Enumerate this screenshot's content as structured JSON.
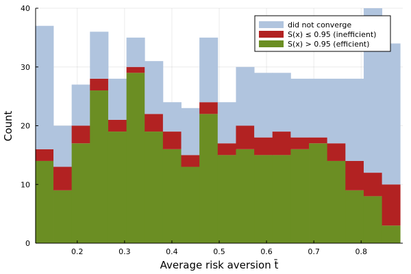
{
  "chart_data": {
    "type": "bar",
    "stacked": true,
    "title": "",
    "xlabel": "Average risk aversion t̄",
    "ylabel": "Count",
    "xlim": [
      0.112,
      0.888
    ],
    "ylim": [
      0,
      40
    ],
    "bin_edges": [
      0.1111,
      0.1497,
      0.1882,
      0.2268,
      0.2654,
      0.304,
      0.3425,
      0.3811,
      0.4197,
      0.4582,
      0.4968,
      0.5354,
      0.574,
      0.6125,
      0.6511,
      0.6897,
      0.7282,
      0.7668,
      0.8054,
      0.844,
      0.8825
    ],
    "x_ticks": [
      "0.2",
      "0.3",
      "0.4",
      "0.5",
      "0.6",
      "0.7",
      "0.8"
    ],
    "x_tick_values": [
      0.2,
      0.3,
      0.4,
      0.5,
      0.6,
      0.7,
      0.8
    ],
    "y_ticks": [
      "0",
      "10",
      "20",
      "30",
      "40"
    ],
    "y_tick_values": [
      0,
      10,
      20,
      30,
      40
    ],
    "grid": true,
    "legend_position": "top-right",
    "series": [
      {
        "name": "did not converge",
        "color": "#b0c4de",
        "values": [
          21,
          7,
          7,
          8,
          7,
          5,
          9,
          5,
          8,
          11,
          7,
          10,
          11,
          10,
          10,
          10,
          11,
          14,
          28,
          24
        ]
      },
      {
        "name": "S(x) ≤ 0.95 (inefficient)",
        "color": "#b22222",
        "values": [
          2,
          4,
          3,
          2,
          2,
          1,
          3,
          3,
          2,
          2,
          2,
          4,
          3,
          4,
          2,
          1,
          3,
          5,
          4,
          7
        ]
      },
      {
        "name": "S(x) > 0.95 (efficient)",
        "color": "#6b8e23",
        "values": [
          14,
          9,
          17,
          26,
          19,
          29,
          19,
          16,
          13,
          22,
          15,
          16,
          15,
          15,
          16,
          17,
          14,
          9,
          8,
          3
        ]
      }
    ]
  }
}
